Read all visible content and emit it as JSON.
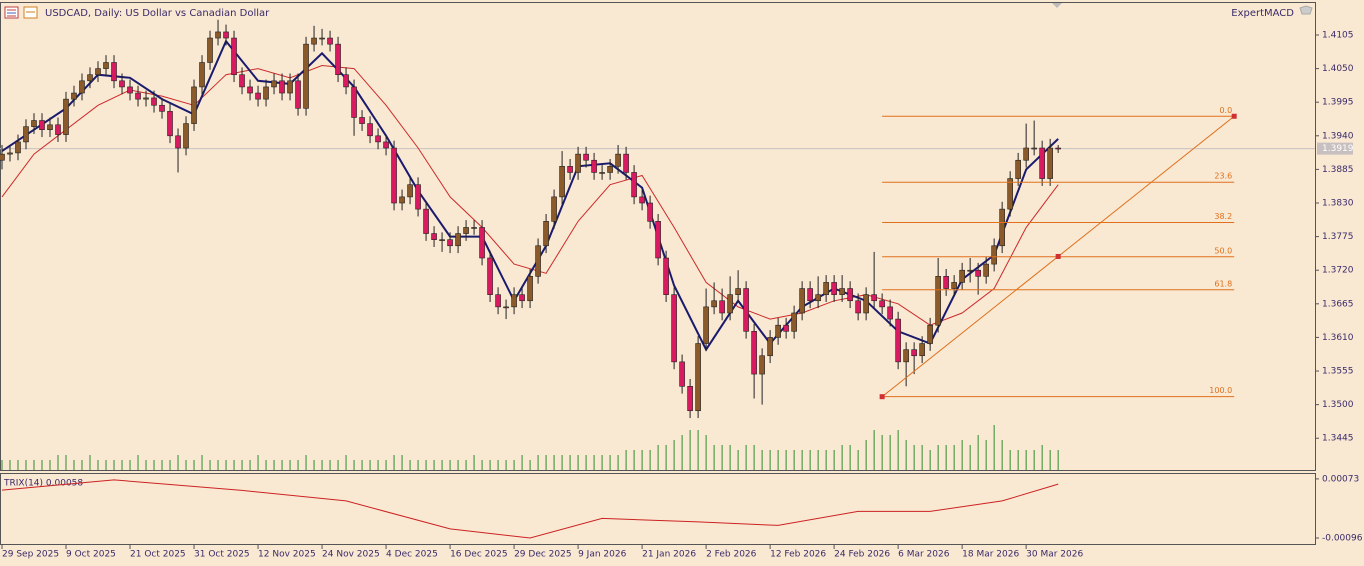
{
  "header": {
    "title": "USDCAD, Daily:  US Dollar vs Canadian Dollar",
    "expert": "ExpertMACD"
  },
  "chart_data": {
    "type": "candlestick",
    "xlim": [
      -0.25,
      164.1
    ],
    "ylim": [
      1.3393,
      1.4159
    ],
    "yticks": [
      1.4105,
      {
        "value": 1.405,
        "label": "1.4050"
      },
      1.3995,
      {
        "value": 1.394,
        "label": "1.3940"
      },
      1.3885,
      {
        "value": 1.383,
        "label": "1.3830"
      },
      1.3775,
      {
        "value": 1.372,
        "label": "1.3720"
      },
      1.3665,
      {
        "value": 1.361,
        "label": "1.3610"
      },
      1.3555,
      {
        "value": 1.35,
        "label": "1.3500"
      },
      1.3445
    ],
    "xticks": [
      {
        "value": 0,
        "label": "29 Sep 2025"
      },
      {
        "value": 8,
        "label": "9 Oct 2025"
      },
      {
        "value": 16,
        "label": "21 Oct 2025"
      },
      {
        "value": 24,
        "label": "31 Oct 2025"
      },
      {
        "value": 32,
        "label": "12 Nov 2025"
      },
      {
        "value": 40,
        "label": "24 Nov 2025"
      },
      {
        "value": 48,
        "label": "4 Dec 2025"
      },
      {
        "value": 56,
        "label": "16 Dec 2025"
      },
      {
        "value": 64,
        "label": "29 Dec 2025"
      },
      {
        "value": 72,
        "label": "9 Jan 2026"
      },
      {
        "value": 80,
        "label": "21 Jan 2026"
      },
      {
        "value": 88,
        "label": "2 Feb 2026"
      },
      {
        "value": 96,
        "label": "12 Feb 2026"
      },
      {
        "value": 104,
        "label": "24 Feb 2026"
      },
      {
        "value": 112,
        "label": "6 Mar 2026"
      },
      {
        "value": 120,
        "label": "18 Mar 2026"
      },
      {
        "value": 128,
        "label": "30 Mar 2026"
      }
    ],
    "bull_color": "#8b5a2b",
    "bear_color": "#d81b60",
    "candles": [
      [
        1.39,
        1.3925,
        1.3885,
        1.391
      ],
      [
        1.391,
        1.3924,
        1.3898,
        1.3912
      ],
      [
        1.3912,
        1.3942,
        1.39,
        1.393
      ],
      [
        1.393,
        1.3967,
        1.3918,
        1.3955
      ],
      [
        1.3955,
        1.3977,
        1.3943,
        1.3965
      ],
      [
        1.3965,
        1.3977,
        1.3938,
        1.395
      ],
      [
        1.395,
        1.397,
        1.3938,
        1.3958
      ],
      [
        1.3958,
        1.397,
        1.393,
        1.3942
      ],
      [
        1.3942,
        1.4012,
        1.393,
        1.4
      ],
      [
        1.4,
        1.4022,
        1.3988,
        1.401
      ],
      [
        1.401,
        1.4042,
        1.3998,
        1.403
      ],
      [
        1.403,
        1.4052,
        1.4018,
        1.404
      ],
      [
        1.404,
        1.4062,
        1.4028,
        1.405
      ],
      [
        1.405,
        1.4072,
        1.4038,
        1.406
      ],
      [
        1.406,
        1.4072,
        1.4018,
        1.403
      ],
      [
        1.403,
        1.4042,
        1.4008,
        1.402
      ],
      [
        1.402,
        1.4032,
        1.3998,
        1.401
      ],
      [
        1.401,
        1.4022,
        1.3988,
        1.4
      ],
      [
        1.4,
        1.4014,
        1.3988,
        1.4002
      ],
      [
        1.4002,
        1.4014,
        1.3978,
        1.399
      ],
      [
        1.399,
        1.4002,
        1.3968,
        1.398
      ],
      [
        1.398,
        1.3992,
        1.3928,
        1.394
      ],
      [
        1.394,
        1.3952,
        1.388,
        1.392
      ],
      [
        1.392,
        1.3972,
        1.3908,
        1.396
      ],
      [
        1.396,
        1.4032,
        1.3948,
        1.402
      ],
      [
        1.402,
        1.4072,
        1.4008,
        1.406
      ],
      [
        1.406,
        1.4112,
        1.4048,
        1.41
      ],
      [
        1.41,
        1.413,
        1.4088,
        1.411
      ],
      [
        1.411,
        1.4122,
        1.4088,
        1.41
      ],
      [
        1.41,
        1.4112,
        1.4028,
        1.404
      ],
      [
        1.404,
        1.4052,
        1.4008,
        1.402
      ],
      [
        1.402,
        1.4032,
        1.3998,
        1.401
      ],
      [
        1.401,
        1.4022,
        1.3988,
        1.4
      ],
      [
        1.4,
        1.4032,
        1.3988,
        1.402
      ],
      [
        1.402,
        1.4042,
        1.4008,
        1.403
      ],
      [
        1.403,
        1.4042,
        1.3998,
        1.401
      ],
      [
        1.401,
        1.4042,
        1.3998,
        1.403
      ],
      [
        1.403,
        1.4042,
        1.3973,
        1.3985
      ],
      [
        1.3985,
        1.4102,
        1.3973,
        1.409
      ],
      [
        1.409,
        1.412,
        1.4078,
        1.41
      ],
      [
        1.41,
        1.4115,
        1.4088,
        1.41
      ],
      [
        1.41,
        1.4112,
        1.4078,
        1.409
      ],
      [
        1.409,
        1.4102,
        1.4028,
        1.404
      ],
      [
        1.404,
        1.4052,
        1.4008,
        1.402
      ],
      [
        1.402,
        1.4032,
        1.394,
        1.397
      ],
      [
        1.397,
        1.3982,
        1.3948,
        1.396
      ],
      [
        1.396,
        1.3972,
        1.3928,
        1.394
      ],
      [
        1.394,
        1.3952,
        1.3918,
        1.393
      ],
      [
        1.393,
        1.3942,
        1.3908,
        1.392
      ],
      [
        1.392,
        1.3932,
        1.3818,
        1.383
      ],
      [
        1.383,
        1.3852,
        1.3818,
        1.384
      ],
      [
        1.384,
        1.3872,
        1.3828,
        1.386
      ],
      [
        1.386,
        1.3872,
        1.3808,
        1.382
      ],
      [
        1.382,
        1.3832,
        1.3768,
        1.378
      ],
      [
        1.378,
        1.3792,
        1.3758,
        1.377
      ],
      [
        1.377,
        1.3782,
        1.375,
        1.377
      ],
      [
        1.377,
        1.3782,
        1.3748,
        1.376
      ],
      [
        1.376,
        1.3792,
        1.3748,
        1.378
      ],
      [
        1.378,
        1.3802,
        1.3768,
        1.379
      ],
      [
        1.379,
        1.3802,
        1.3778,
        1.379
      ],
      [
        1.379,
        1.3802,
        1.3728,
        1.374
      ],
      [
        1.374,
        1.3752,
        1.3668,
        1.368
      ],
      [
        1.368,
        1.3692,
        1.3648,
        1.366
      ],
      [
        1.366,
        1.3672,
        1.364,
        1.366
      ],
      [
        1.366,
        1.3692,
        1.3648,
        1.368
      ],
      [
        1.368,
        1.3692,
        1.3658,
        1.367
      ],
      [
        1.367,
        1.3722,
        1.3658,
        1.371
      ],
      [
        1.371,
        1.3772,
        1.3698,
        1.376
      ],
      [
        1.376,
        1.3812,
        1.3748,
        1.38
      ],
      [
        1.38,
        1.3852,
        1.3788,
        1.384
      ],
      [
        1.384,
        1.3915,
        1.3828,
        1.389
      ],
      [
        1.389,
        1.3902,
        1.3868,
        1.388
      ],
      [
        1.388,
        1.3922,
        1.3868,
        1.391
      ],
      [
        1.391,
        1.3922,
        1.3888,
        1.39
      ],
      [
        1.39,
        1.3912,
        1.3868,
        1.388
      ],
      [
        1.388,
        1.3892,
        1.3868,
        1.388
      ],
      [
        1.388,
        1.3902,
        1.3868,
        1.389
      ],
      [
        1.389,
        1.3925,
        1.3878,
        1.391
      ],
      [
        1.391,
        1.3922,
        1.3868,
        1.388
      ],
      [
        1.388,
        1.3892,
        1.3828,
        1.384
      ],
      [
        1.384,
        1.3852,
        1.3818,
        1.383
      ],
      [
        1.383,
        1.3842,
        1.3788,
        1.38
      ],
      [
        1.38,
        1.3812,
        1.3728,
        1.374
      ],
      [
        1.374,
        1.3752,
        1.3668,
        1.368
      ],
      [
        1.368,
        1.3692,
        1.3558,
        1.357
      ],
      [
        1.357,
        1.3582,
        1.3518,
        1.353
      ],
      [
        1.353,
        1.3542,
        1.3478,
        1.349
      ],
      [
        1.349,
        1.3612,
        1.3478,
        1.36
      ],
      [
        1.36,
        1.369,
        1.3588,
        1.366
      ],
      [
        1.366,
        1.37,
        1.3648,
        1.367
      ],
      [
        1.367,
        1.369,
        1.3638,
        1.365
      ],
      [
        1.365,
        1.371,
        1.3638,
        1.368
      ],
      [
        1.368,
        1.372,
        1.3668,
        1.369
      ],
      [
        1.369,
        1.3702,
        1.3608,
        1.362
      ],
      [
        1.362,
        1.3632,
        1.351,
        1.355
      ],
      [
        1.355,
        1.3592,
        1.35,
        1.358
      ],
      [
        1.358,
        1.3622,
        1.3568,
        1.361
      ],
      [
        1.361,
        1.3642,
        1.3598,
        1.363
      ],
      [
        1.363,
        1.3642,
        1.3608,
        1.362
      ],
      [
        1.362,
        1.3662,
        1.3608,
        1.365
      ],
      [
        1.365,
        1.3702,
        1.3638,
        1.369
      ],
      [
        1.369,
        1.3702,
        1.3658,
        1.367
      ],
      [
        1.367,
        1.371,
        1.3658,
        1.368
      ],
      [
        1.368,
        1.3712,
        1.3668,
        1.37
      ],
      [
        1.37,
        1.3712,
        1.3668,
        1.368
      ],
      [
        1.368,
        1.3712,
        1.3668,
        1.369
      ],
      [
        1.369,
        1.3702,
        1.3658,
        1.367
      ],
      [
        1.367,
        1.3682,
        1.3638,
        1.365
      ],
      [
        1.365,
        1.3692,
        1.3638,
        1.368
      ],
      [
        1.368,
        1.375,
        1.3658,
        1.367
      ],
      [
        1.367,
        1.3682,
        1.3648,
        1.366
      ],
      [
        1.366,
        1.3672,
        1.3628,
        1.364
      ],
      [
        1.364,
        1.3652,
        1.3558,
        1.357
      ],
      [
        1.357,
        1.3602,
        1.353,
        1.359
      ],
      [
        1.359,
        1.3602,
        1.355,
        1.358
      ],
      [
        1.358,
        1.3612,
        1.3568,
        1.36
      ],
      [
        1.36,
        1.3642,
        1.3588,
        1.363
      ],
      [
        1.363,
        1.374,
        1.3618,
        1.371
      ],
      [
        1.371,
        1.3722,
        1.3678,
        1.369
      ],
      [
        1.369,
        1.3712,
        1.3678,
        1.37
      ],
      [
        1.37,
        1.3732,
        1.3688,
        1.372
      ],
      [
        1.372,
        1.374,
        1.37,
        1.372
      ],
      [
        1.372,
        1.3732,
        1.368,
        1.371
      ],
      [
        1.371,
        1.3742,
        1.3698,
        1.373
      ],
      [
        1.373,
        1.3772,
        1.3718,
        1.376
      ],
      [
        1.376,
        1.3832,
        1.3748,
        1.382
      ],
      [
        1.382,
        1.3882,
        1.3808,
        1.387
      ],
      [
        1.387,
        1.3912,
        1.3858,
        1.39
      ],
      [
        1.39,
        1.396,
        1.3888,
        1.392
      ],
      [
        1.392,
        1.3965,
        1.3908,
        1.392
      ],
      [
        1.392,
        1.3932,
        1.3858,
        1.387
      ],
      [
        1.387,
        1.3935,
        1.3858,
        1.392
      ],
      [
        1.392,
        1.3925,
        1.3912,
        1.3919
      ]
    ],
    "volume": {
      "color": "#2e8b2e",
      "values": [
        2,
        2,
        2,
        2,
        2,
        2,
        2,
        3,
        3,
        2,
        2,
        3,
        2,
        2,
        2,
        2,
        2,
        3,
        2,
        2,
        2,
        2,
        3,
        2,
        2,
        3,
        2,
        2,
        2,
        2,
        2,
        2,
        3,
        2,
        2,
        2,
        2,
        2,
        3,
        2,
        2,
        2,
        2,
        3,
        2,
        2,
        2,
        2,
        2,
        3,
        3,
        2,
        2,
        2,
        2,
        2,
        2,
        2,
        2,
        3,
        2,
        2,
        2,
        2,
        2,
        3,
        2,
        3,
        3,
        3,
        3,
        3,
        3,
        3,
        3,
        3,
        3,
        3,
        4,
        4,
        4,
        4,
        5,
        5,
        6,
        7,
        8,
        8,
        7,
        5,
        5,
        5,
        4,
        5,
        5,
        4,
        4,
        4,
        4,
        4,
        4,
        4,
        4,
        4,
        4,
        5,
        5,
        4,
        6,
        8,
        7,
        7,
        8,
        6,
        5,
        5,
        4,
        5,
        5,
        5,
        6,
        5,
        7,
        6,
        9,
        6,
        4,
        4,
        4,
        4,
        5,
        4,
        4
      ]
    },
    "moving_averages": [
      {
        "color": "#cc2a2a",
        "x": [
          0,
          4,
          8,
          12,
          16,
          20,
          24,
          28,
          32,
          36,
          40,
          44,
          48,
          52,
          56,
          60,
          64,
          68,
          72,
          76,
          80,
          84,
          88,
          92,
          96,
          100,
          104,
          108,
          112,
          116,
          120,
          124,
          128,
          132
        ],
        "values": [
          1.384,
          1.391,
          1.395,
          1.399,
          1.4015,
          1.4005,
          1.399,
          1.404,
          1.405,
          1.4035,
          1.4055,
          1.405,
          1.399,
          1.392,
          1.384,
          1.379,
          1.373,
          1.3715,
          1.38,
          1.386,
          1.3875,
          1.379,
          1.37,
          1.366,
          1.364,
          1.365,
          1.367,
          1.368,
          1.3665,
          1.363,
          1.365,
          1.369,
          1.379,
          1.386
        ]
      },
      {
        "color": "#1a1a6e",
        "x": [
          0,
          4,
          8,
          12,
          16,
          20,
          24,
          28,
          32,
          36,
          40,
          44,
          48,
          52,
          56,
          60,
          64,
          68,
          72,
          76,
          80,
          84,
          88,
          92,
          96,
          100,
          104,
          108,
          112,
          116,
          120,
          124,
          128,
          132
        ],
        "values": [
          1.3915,
          1.395,
          1.3985,
          1.404,
          1.4035,
          1.4,
          1.3975,
          1.4095,
          1.403,
          1.4025,
          1.4075,
          1.402,
          1.394,
          1.385,
          1.3775,
          1.3775,
          1.367,
          1.376,
          1.389,
          1.3895,
          1.3855,
          1.3695,
          1.359,
          1.367,
          1.36,
          1.366,
          1.369,
          1.367,
          1.362,
          1.36,
          1.3705,
          1.3745,
          1.3885,
          1.3935
        ]
      }
    ],
    "fibonacci": {
      "color": "#e0701c",
      "x": [
        110,
        154
      ],
      "levels": [
        {
          "label": "0.0",
          "value": 1.3972
        },
        {
          "label": "23.6",
          "value": 1.3864
        },
        {
          "label": "38.2",
          "value": 1.3798
        },
        {
          "label": "50.0",
          "value": 1.3742
        },
        {
          "label": "61.8",
          "value": 1.3688
        },
        {
          "label": "100.0",
          "value": 1.3513
        }
      ]
    },
    "trix": {
      "label": "TRIX(14) 0.00058",
      "color": "#cc2222",
      "ylim": [
        -0.00116,
        0.00087
      ],
      "yticks": [
        0.00073,
        -0.00096
      ],
      "x": [
        0,
        14,
        30,
        43,
        56,
        66,
        75,
        87,
        97,
        107,
        116,
        125,
        132
      ],
      "values": [
        0.00041,
        0.0007,
        0.0004,
        0.0001,
        -0.0007,
        -0.00096,
        -0.0004,
        -0.0005,
        -0.0006,
        -0.0002,
        -0.0002,
        0.0001,
        0.00058
      ]
    }
  }
}
